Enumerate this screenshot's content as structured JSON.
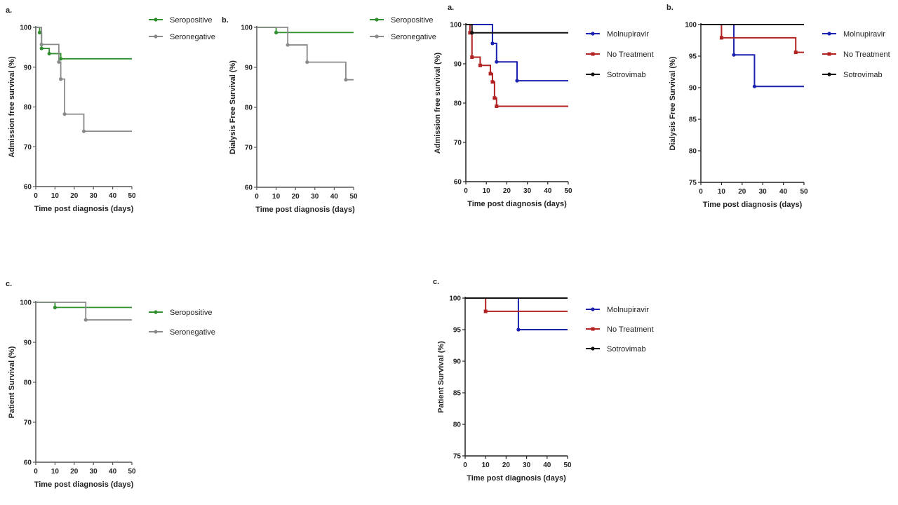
{
  "colors": {
    "Seropositive": "#2f8f2f",
    "Seronegative": "#8a8a8a",
    "Molnupiravir": "#1c22b0",
    "No Treatment": "#b32222",
    "Sotrovimab": "#111111"
  },
  "chart_data": [
    {
      "type": "line",
      "panel": "a.",
      "xlabel": "Time post diagnosis (days)",
      "ylabel": "Admission free survival (%)",
      "xlim": [
        0,
        50
      ],
      "ylim": [
        60,
        100
      ],
      "xticks": [
        0,
        10,
        20,
        30,
        40,
        50
      ],
      "yticks": [
        60,
        70,
        80,
        90,
        100
      ],
      "legend": "right",
      "series": [
        {
          "name": "Seropositive",
          "steps": [
            [
              0,
              100
            ],
            [
              2,
              98.7
            ],
            [
              3,
              94.7
            ],
            [
              7,
              93.4
            ],
            [
              13,
              92.1
            ],
            [
              50,
              92.1
            ]
          ]
        },
        {
          "name": "Seronegative",
          "steps": [
            [
              0,
              100
            ],
            [
              3,
              95.7
            ],
            [
              12,
              91.3
            ],
            [
              13,
              87.0
            ],
            [
              15,
              78.2
            ],
            [
              25,
              73.9
            ],
            [
              50,
              73.9
            ]
          ]
        }
      ]
    },
    {
      "type": "line",
      "panel": "b.",
      "xlabel": "Time post diagnosis (days)",
      "ylabel": "Dialysis Free Survival (%)",
      "xlim": [
        0,
        50
      ],
      "ylim": [
        60,
        100
      ],
      "xticks": [
        0,
        10,
        20,
        30,
        40,
        50
      ],
      "yticks": [
        60,
        70,
        80,
        90,
        100
      ],
      "legend": "right",
      "series": [
        {
          "name": "Seropositive",
          "steps": [
            [
              0,
              100
            ],
            [
              10,
              98.7
            ],
            [
              50,
              98.7
            ]
          ]
        },
        {
          "name": "Seronegative",
          "steps": [
            [
              0,
              100
            ],
            [
              16,
              95.6
            ],
            [
              26,
              91.3
            ],
            [
              46,
              86.9
            ],
            [
              50,
              86.9
            ]
          ]
        }
      ]
    },
    {
      "type": "line",
      "panel": "a.",
      "xlabel": "Time post diagnosis (days)",
      "ylabel": "Admission free survival (%)",
      "xlim": [
        0,
        50
      ],
      "ylim": [
        60,
        100
      ],
      "xticks": [
        0,
        10,
        20,
        30,
        40,
        50
      ],
      "yticks": [
        60,
        70,
        80,
        90,
        100
      ],
      "legend": "right",
      "series": [
        {
          "name": "Molnupiravir",
          "steps": [
            [
              0,
              100
            ],
            [
              13,
              95.2
            ],
            [
              15,
              90.5
            ],
            [
              25,
              85.7
            ],
            [
              50,
              85.7
            ]
          ]
        },
        {
          "name": "No Treatment",
          "steps": [
            [
              0,
              100
            ],
            [
              2,
              97.9
            ],
            [
              3,
              91.7
            ],
            [
              7,
              89.6
            ],
            [
              12,
              87.5
            ],
            [
              13,
              85.4
            ],
            [
              14,
              81.3
            ],
            [
              15,
              79.2
            ],
            [
              50,
              79.2
            ]
          ]
        },
        {
          "name": "Sotrovimab",
          "steps": [
            [
              0,
              100
            ],
            [
              3,
              97.9
            ],
            [
              50,
              97.9
            ]
          ]
        }
      ]
    },
    {
      "type": "line",
      "panel": "b.",
      "xlabel": "Time post diagnosis (days)",
      "ylabel": "Dialysis Free Survival (%)",
      "xlim": [
        0,
        50
      ],
      "ylim": [
        75,
        100
      ],
      "xticks": [
        0,
        10,
        20,
        30,
        40,
        50
      ],
      "yticks": [
        75,
        80,
        85,
        90,
        95,
        100
      ],
      "legend": "right",
      "series": [
        {
          "name": "Molnupiravir",
          "steps": [
            [
              0,
              100
            ],
            [
              16,
              95.2
            ],
            [
              26,
              90.2
            ],
            [
              50,
              90.2
            ]
          ]
        },
        {
          "name": "No Treatment",
          "steps": [
            [
              0,
              100
            ],
            [
              10,
              97.9
            ],
            [
              46,
              95.6
            ],
            [
              50,
              95.6
            ]
          ]
        },
        {
          "name": "Sotrovimab",
          "steps": [
            [
              0,
              100
            ],
            [
              50,
              100
            ]
          ]
        }
      ]
    },
    {
      "type": "line",
      "panel": "c.",
      "xlabel": "Time post diagnosis (days)",
      "ylabel": "Patient Survival (%)",
      "xlim": [
        0,
        50
      ],
      "ylim": [
        60,
        100
      ],
      "xticks": [
        0,
        10,
        20,
        30,
        40,
        50
      ],
      "yticks": [
        60,
        70,
        80,
        90,
        100
      ],
      "legend": "right",
      "series": [
        {
          "name": "Seropositive",
          "steps": [
            [
              0,
              100
            ],
            [
              10,
              98.7
            ],
            [
              50,
              98.7
            ]
          ]
        },
        {
          "name": "Seronegative",
          "steps": [
            [
              0,
              100
            ],
            [
              26,
              95.6
            ],
            [
              50,
              95.6
            ]
          ]
        }
      ]
    },
    {
      "type": "line",
      "panel": "c.",
      "xlabel": "Time post diagnosis (days)",
      "ylabel": "Patient Survival (%)",
      "xlim": [
        0,
        50
      ],
      "ylim": [
        75,
        100
      ],
      "xticks": [
        0,
        10,
        20,
        30,
        40,
        50
      ],
      "yticks": [
        75,
        80,
        85,
        90,
        95,
        100
      ],
      "legend": "right",
      "series": [
        {
          "name": "Molnupiravir",
          "steps": [
            [
              0,
              100
            ],
            [
              26,
              95
            ],
            [
              50,
              95
            ]
          ]
        },
        {
          "name": "No Treatment",
          "steps": [
            [
              0,
              100
            ],
            [
              10,
              97.9
            ],
            [
              50,
              97.9
            ]
          ]
        },
        {
          "name": "Sotrovimab",
          "steps": [
            [
              0,
              100
            ],
            [
              50,
              100
            ]
          ]
        }
      ]
    }
  ]
}
